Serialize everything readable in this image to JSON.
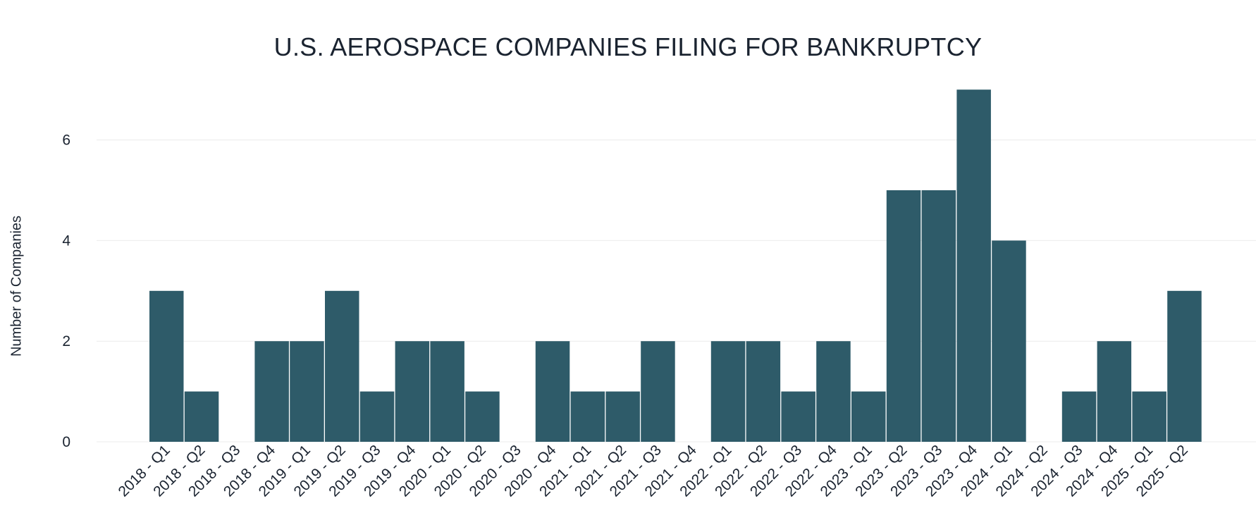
{
  "chart_data": {
    "type": "bar",
    "title": "U.S. AEROSPACE COMPANIES FILING FOR BANKRUPTCY",
    "xlabel": "",
    "ylabel": "Number of Companies",
    "categories": [
      "2018 - Q1",
      "2018 - Q2",
      "2018 - Q3",
      "2018 - Q4",
      "2019 - Q1",
      "2019 - Q2",
      "2019 - Q3",
      "2019 - Q4",
      "2020 - Q1",
      "2020 - Q2",
      "2020 - Q3",
      "2020 - Q4",
      "2021 - Q1",
      "2021 - Q2",
      "2021 - Q3",
      "2021 - Q4",
      "2022 - Q1",
      "2022 - Q2",
      "2022 - Q3",
      "2022 - Q4",
      "2023 - Q1",
      "2023 - Q2",
      "2023 - Q3",
      "2023 - Q4",
      "2024 - Q1",
      "2024 - Q2",
      "2024 - Q3",
      "2024 - Q4",
      "2025 - Q1",
      "2025 - Q2"
    ],
    "values": [
      3,
      1,
      0,
      2,
      2,
      3,
      1,
      2,
      2,
      1,
      0,
      2,
      1,
      1,
      2,
      0,
      2,
      2,
      1,
      2,
      1,
      5,
      5,
      7,
      4,
      0,
      1,
      2,
      1,
      3
    ],
    "ylim": [
      0,
      7
    ],
    "yticks": [
      0,
      2,
      4,
      6
    ],
    "grid": true,
    "legend": "none",
    "bar_color": "#2e5b69",
    "grid_color": "#ececec"
  }
}
